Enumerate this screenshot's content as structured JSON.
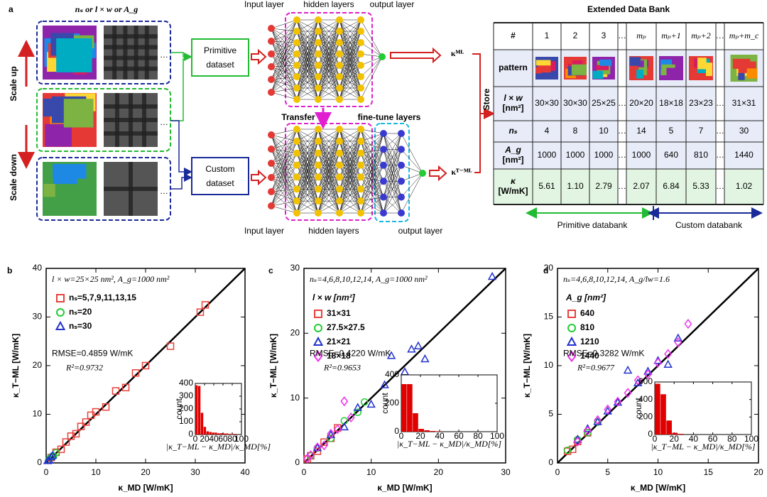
{
  "diagram": {
    "panel": "a",
    "input_title": "nₛ or l × w or A_g",
    "scale_up": "Scale up",
    "scale_down": "Scale down",
    "ellipsis": "…",
    "primitive_dataset": [
      "Primitive",
      "dataset"
    ],
    "custom_dataset": [
      "Custom",
      "dataset"
    ],
    "top_network": {
      "input": "Input layer",
      "hidden": "hidden layers",
      "output": "output layer",
      "result": "κᴹᴸ"
    },
    "transfer": "Transfer",
    "bottom_network": {
      "input": "Input layer",
      "hidden": "hidden layers",
      "finetune": "fine-tune layers",
      "output": "output layer",
      "result": "κᵀ⁻ᴹᴸ"
    },
    "store": "Store",
    "table": {
      "title": "Extended Data Bank",
      "header": [
        "#",
        "1",
        "2",
        "3",
        "…",
        "mₚ",
        "mₚ+1",
        "mₚ+2",
        "…",
        "mₚ+m_c"
      ],
      "rows": [
        {
          "label": [
            "pattern"
          ]
        },
        {
          "label": [
            "l × w",
            "[nm²]"
          ],
          "cells": [
            "30×30",
            "30×30",
            "25×25",
            "…",
            "20×20",
            "18×18",
            "23×23",
            "…",
            "31×31"
          ]
        },
        {
          "label": [
            "nₛ"
          ],
          "cells": [
            "4",
            "8",
            "10",
            "…",
            "14",
            "5",
            "7",
            "…",
            "30"
          ]
        },
        {
          "label": [
            "A_g",
            "[nm²]"
          ],
          "cells": [
            "1000",
            "1000",
            "1000",
            "…",
            "1000",
            "640",
            "810",
            "…",
            "1440"
          ]
        },
        {
          "label": [
            "κ",
            "[W/mK]"
          ],
          "cells": [
            "5.61",
            "1.10",
            "2.79",
            "…",
            "2.07",
            "6.84",
            "5.33",
            "…",
            "1.02"
          ]
        }
      ]
    },
    "primitive_databank": "Primitive databank",
    "custom_databank": "Custom databank"
  },
  "chart_data": [
    {
      "type": "scatter",
      "panel": "b",
      "title": "l × w=25×25 nm², A_g=1000 nm²",
      "series": [
        {
          "name": "nₛ=5,7,9,11,13,15",
          "color": "#e8413c",
          "marker": "square",
          "x": [
            1,
            2,
            3,
            4,
            5,
            6,
            7,
            8,
            9,
            10,
            12,
            14,
            16,
            18,
            20,
            25,
            31,
            32
          ],
          "values": [
            1.1,
            2.2,
            2.8,
            4.3,
            5.5,
            6,
            7.5,
            8.4,
            9.8,
            10.5,
            11.5,
            14.8,
            15.5,
            18.5,
            20,
            24,
            31,
            32.5
          ]
        },
        {
          "name": "nₛ=20",
          "color": "#22cc33",
          "marker": "circle",
          "x": [
            0.5,
            1,
            1.5,
            2
          ],
          "values": [
            0.6,
            1.2,
            1.4,
            2.1
          ]
        },
        {
          "name": "nₛ=30",
          "color": "#2233cc",
          "marker": "triangle",
          "x": [
            0.3,
            0.6,
            1,
            1.3
          ],
          "values": [
            0.4,
            0.5,
            1.2,
            1.5
          ]
        }
      ],
      "annotations": [
        "RMSE=0.4859 W/mK",
        "R²=0.9732"
      ],
      "xlabel": "κ_MD [W/mK]",
      "ylabel": "κ_T−ML [W/mK]",
      "xlim": [
        0,
        40
      ],
      "ylim": [
        0,
        40
      ],
      "xticks": [
        0,
        10,
        20,
        30,
        40
      ],
      "yticks": [
        0,
        10,
        20,
        30,
        40
      ],
      "legend": "upper left"
    },
    {
      "type": "histogram",
      "color": "#e00000",
      "bins": [
        0,
        6,
        12,
        18,
        24,
        30,
        36,
        42,
        48,
        54,
        60,
        66,
        72,
        78,
        84,
        90
      ],
      "values": [
        385,
        380,
        170,
        60,
        25,
        20,
        15,
        15,
        10,
        10,
        8,
        8,
        5,
        5,
        5
      ],
      "xlabel": "|κ_T−ML − κ_MD|/κ_MD[%]",
      "ylabel": "count",
      "xlim": [
        0,
        100
      ],
      "ylim": [
        0,
        400
      ],
      "xticks": [
        0,
        20,
        40,
        60,
        80,
        100
      ],
      "yticks": [
        0,
        100,
        200,
        300,
        400
      ]
    },
    {
      "type": "scatter",
      "panel": "c",
      "title": "nₛ=4,6,8,10,12,14, A_g=1000 nm²",
      "legend_title": "l × w [nm²]",
      "series": [
        {
          "name": "31×31",
          "color": "#e8413c",
          "marker": "square",
          "x": [
            0.5,
            1,
            2,
            3,
            4,
            5
          ],
          "values": [
            0.6,
            1.1,
            1.8,
            3.2,
            3.8,
            5.4
          ]
        },
        {
          "name": "27.5×27.5",
          "color": "#22cc33",
          "marker": "circle",
          "x": [
            1,
            2,
            4,
            6,
            8,
            9
          ],
          "values": [
            1.1,
            2.3,
            3.8,
            6.5,
            7.8,
            9.4
          ]
        },
        {
          "name": "21×21",
          "color": "#2233cc",
          "marker": "triangle",
          "x": [
            2,
            4,
            6,
            8,
            10,
            12,
            13,
            15,
            16,
            17,
            18,
            28
          ],
          "values": [
            2.3,
            4.3,
            5.5,
            8.5,
            9,
            12,
            16.5,
            14,
            17.5,
            18,
            16,
            28.7
          ]
        },
        {
          "name": "18×18",
          "color": "#ee33ee",
          "marker": "diamond",
          "x": [
            0.5,
            1,
            2,
            3,
            4,
            5,
            6,
            7
          ],
          "values": [
            0.7,
            1.2,
            2.4,
            2.7,
            4.5,
            5.2,
            9.5,
            7
          ]
        }
      ],
      "annotations": [
        "RMSE=0.4220 W/mK",
        "R²=0.9653"
      ],
      "xlabel": "κ_MD [W/mK]",
      "ylabel": "κ_T−ML [W/mK]",
      "xlim": [
        0,
        30
      ],
      "ylim": [
        0,
        30
      ],
      "xticks": [
        0,
        10,
        20,
        30
      ],
      "yticks": [
        0,
        10,
        20,
        30
      ],
      "legend": "upper left"
    },
    {
      "type": "histogram",
      "color": "#e00000",
      "bins": [
        0,
        6,
        12,
        18,
        24,
        30,
        36,
        42
      ],
      "values": [
        335,
        335,
        130,
        20,
        10,
        5,
        3
      ],
      "xlabel": "|κ_T−ML − κ_MD|/κ_MD[%]",
      "ylabel": "count",
      "xlim": [
        0,
        100
      ],
      "ylim": [
        0,
        400
      ],
      "xticks": [
        0,
        20,
        40,
        60,
        80,
        100
      ],
      "yticks": [
        0,
        200,
        400
      ]
    },
    {
      "type": "scatter",
      "panel": "d",
      "title": "nₛ=4,6,8,10,12,14, A_g/lw=1.6",
      "legend_title": "A_g [nm²]",
      "series": [
        {
          "name": "640",
          "color": "#e8413c",
          "marker": "square",
          "x": [
            1,
            1.5,
            2,
            3
          ],
          "values": [
            1.2,
            1.4,
            2.2,
            3.1
          ]
        },
        {
          "name": "810",
          "color": "#22cc33",
          "marker": "circle",
          "x": [
            1,
            2,
            3,
            4
          ],
          "values": [
            1.3,
            2.4,
            3.1,
            4.2
          ]
        },
        {
          "name": "1210",
          "color": "#2233cc",
          "marker": "triangle",
          "x": [
            2,
            3,
            4,
            5,
            6,
            7,
            8,
            9,
            10,
            11,
            12
          ],
          "values": [
            2.4,
            3.5,
            4.2,
            5.3,
            6.2,
            9.5,
            8.2,
            9.4,
            10.5,
            10.1,
            12.8
          ]
        },
        {
          "name": "1440",
          "color": "#ee33ee",
          "marker": "diamond",
          "x": [
            2,
            3,
            4,
            5,
            6,
            7,
            8,
            9,
            10,
            11,
            12,
            13
          ],
          "values": [
            2.2,
            3.3,
            4.4,
            5.5,
            6.3,
            7.2,
            8.5,
            9.1,
            10.3,
            11.2,
            12.4,
            14.3
          ]
        }
      ],
      "annotations": [
        "RMSE=0.3282 W/mK",
        "R²=0.9677"
      ],
      "xlabel": "κ_MD [W/mK]",
      "ylabel": "κ_T−ML [W/mK]",
      "xlim": [
        0,
        20
      ],
      "ylim": [
        0,
        20
      ],
      "xticks": [
        0,
        5,
        10,
        15,
        20
      ],
      "yticks": [
        0,
        5,
        10,
        15,
        20
      ],
      "legend": "upper left"
    },
    {
      "type": "histogram",
      "color": "#e00000",
      "bins": [
        0,
        6,
        12,
        18,
        24,
        30
      ],
      "values": [
        580,
        460,
        160,
        20,
        8
      ],
      "xlabel": "|κ_T−ML − κ_MD|/κ_MD[%]",
      "ylabel": "count",
      "xlim": [
        0,
        100
      ],
      "ylim": [
        0,
        600
      ],
      "xticks": [
        0,
        20,
        40,
        60,
        80,
        100
      ],
      "yticks": [
        0,
        200,
        400,
        600
      ]
    }
  ]
}
